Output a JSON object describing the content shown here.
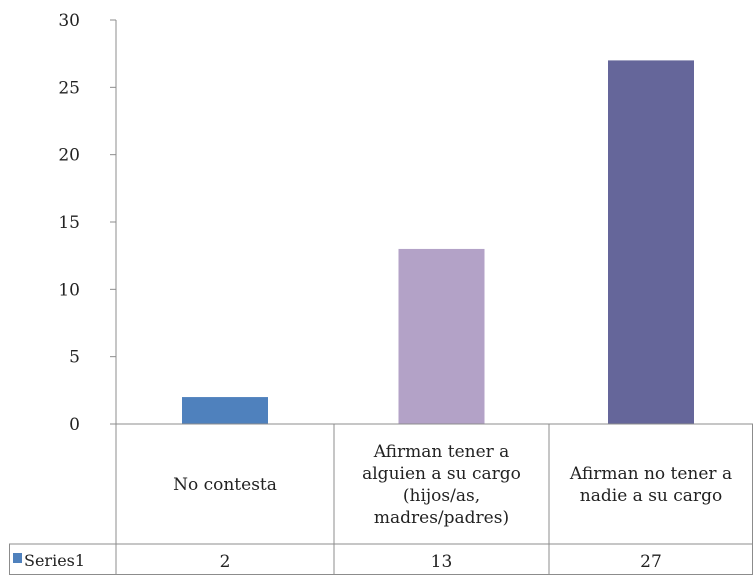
{
  "chart_data": {
    "type": "bar",
    "title": "",
    "xlabel": "",
    "ylabel": "",
    "ylim": [
      0,
      30
    ],
    "yticks": [
      0,
      5,
      10,
      15,
      20,
      25,
      30
    ],
    "grid": false,
    "legend": "data-table-left",
    "categories": [
      [
        "No contesta"
      ],
      [
        "Afirman tener a",
        "alguien a su cargo",
        "(hijos/as,",
        "madres/padres)"
      ],
      [
        "Afirman no tener a",
        "nadie a su cargo"
      ]
    ],
    "series": [
      {
        "name": "Series1",
        "values": [
          2,
          13,
          27
        ]
      }
    ],
    "bar_colors": [
      "#4f81bd",
      "#b3a2c7",
      "#65669a"
    ],
    "legend_color": "#4f81bd"
  }
}
